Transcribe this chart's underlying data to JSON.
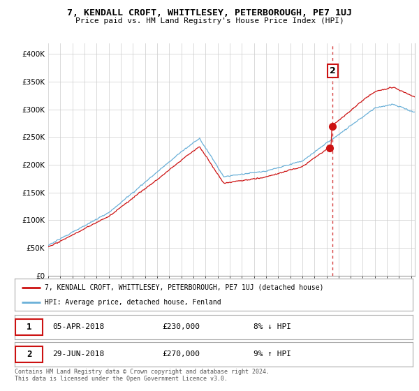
{
  "title": "7, KENDALL CROFT, WHITTLESEY, PETERBOROUGH, PE7 1UJ",
  "subtitle": "Price paid vs. HM Land Registry's House Price Index (HPI)",
  "ylabel_ticks": [
    "£0",
    "£50K",
    "£100K",
    "£150K",
    "£200K",
    "£250K",
    "£300K",
    "£350K",
    "£400K"
  ],
  "ytick_values": [
    0,
    50000,
    100000,
    150000,
    200000,
    250000,
    300000,
    350000,
    400000
  ],
  "ylim": [
    0,
    420000
  ],
  "xlim_start": 1995.0,
  "xlim_end": 2025.3,
  "hpi_color": "#6ab0d8",
  "price_color": "#cc1111",
  "marker1_x": 2018.27,
  "marker1_y": 230000,
  "marker2_x": 2018.5,
  "marker2_y": 270000,
  "vline_x": 2018.5,
  "legend_label1": "7, KENDALL CROFT, WHITTLESEY, PETERBOROUGH, PE7 1UJ (detached house)",
  "legend_label2": "HPI: Average price, detached house, Fenland",
  "sale1_label": "1",
  "sale1_date": "05-APR-2018",
  "sale1_price": "£230,000",
  "sale1_hpi": "8% ↓ HPI",
  "sale2_label": "2",
  "sale2_date": "29-JUN-2018",
  "sale2_price": "£270,000",
  "sale2_hpi": "9% ↑ HPI",
  "footer": "Contains HM Land Registry data © Crown copyright and database right 2024.\nThis data is licensed under the Open Government Licence v3.0.",
  "background_color": "#ffffff",
  "grid_color": "#cccccc"
}
